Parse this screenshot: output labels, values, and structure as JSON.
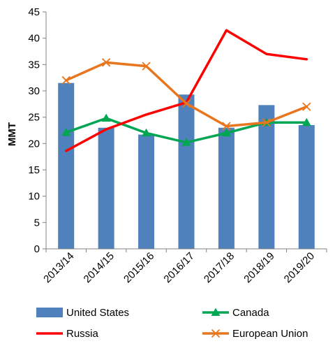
{
  "chart_data": {
    "type": "bar",
    "categories": [
      "2013/14",
      "2014/15",
      "2015/16",
      "2016/17",
      "2017/18",
      "2018/19",
      "2019/20"
    ],
    "ylabel": "MMT",
    "xlabel": "",
    "title": "",
    "ylim": [
      0,
      45
    ],
    "yticks": [
      0,
      5,
      10,
      15,
      20,
      25,
      30,
      35,
      40,
      45
    ],
    "grid": false,
    "legend_position": "bottom",
    "series": [
      {
        "name": "United States",
        "type": "bar",
        "color": "#4f81bd",
        "marker": "none",
        "values": [
          31.5,
          23.0,
          21.7,
          29.3,
          23.0,
          27.3,
          23.5
        ]
      },
      {
        "name": "Canada",
        "type": "line",
        "color": "#00a651",
        "marker": "triangle",
        "values": [
          22.1,
          24.8,
          22.0,
          20.2,
          22.0,
          24.0,
          24.0
        ]
      },
      {
        "name": "Russia",
        "type": "line",
        "color": "#ff0000",
        "marker": "none",
        "values": [
          18.6,
          22.7,
          25.5,
          27.8,
          41.5,
          37.0,
          36.0
        ]
      },
      {
        "name": "European Union",
        "type": "line",
        "color": "#e8761e",
        "marker": "x",
        "values": [
          32.0,
          35.4,
          34.7,
          27.6,
          23.3,
          24.0,
          27.0
        ]
      }
    ]
  }
}
